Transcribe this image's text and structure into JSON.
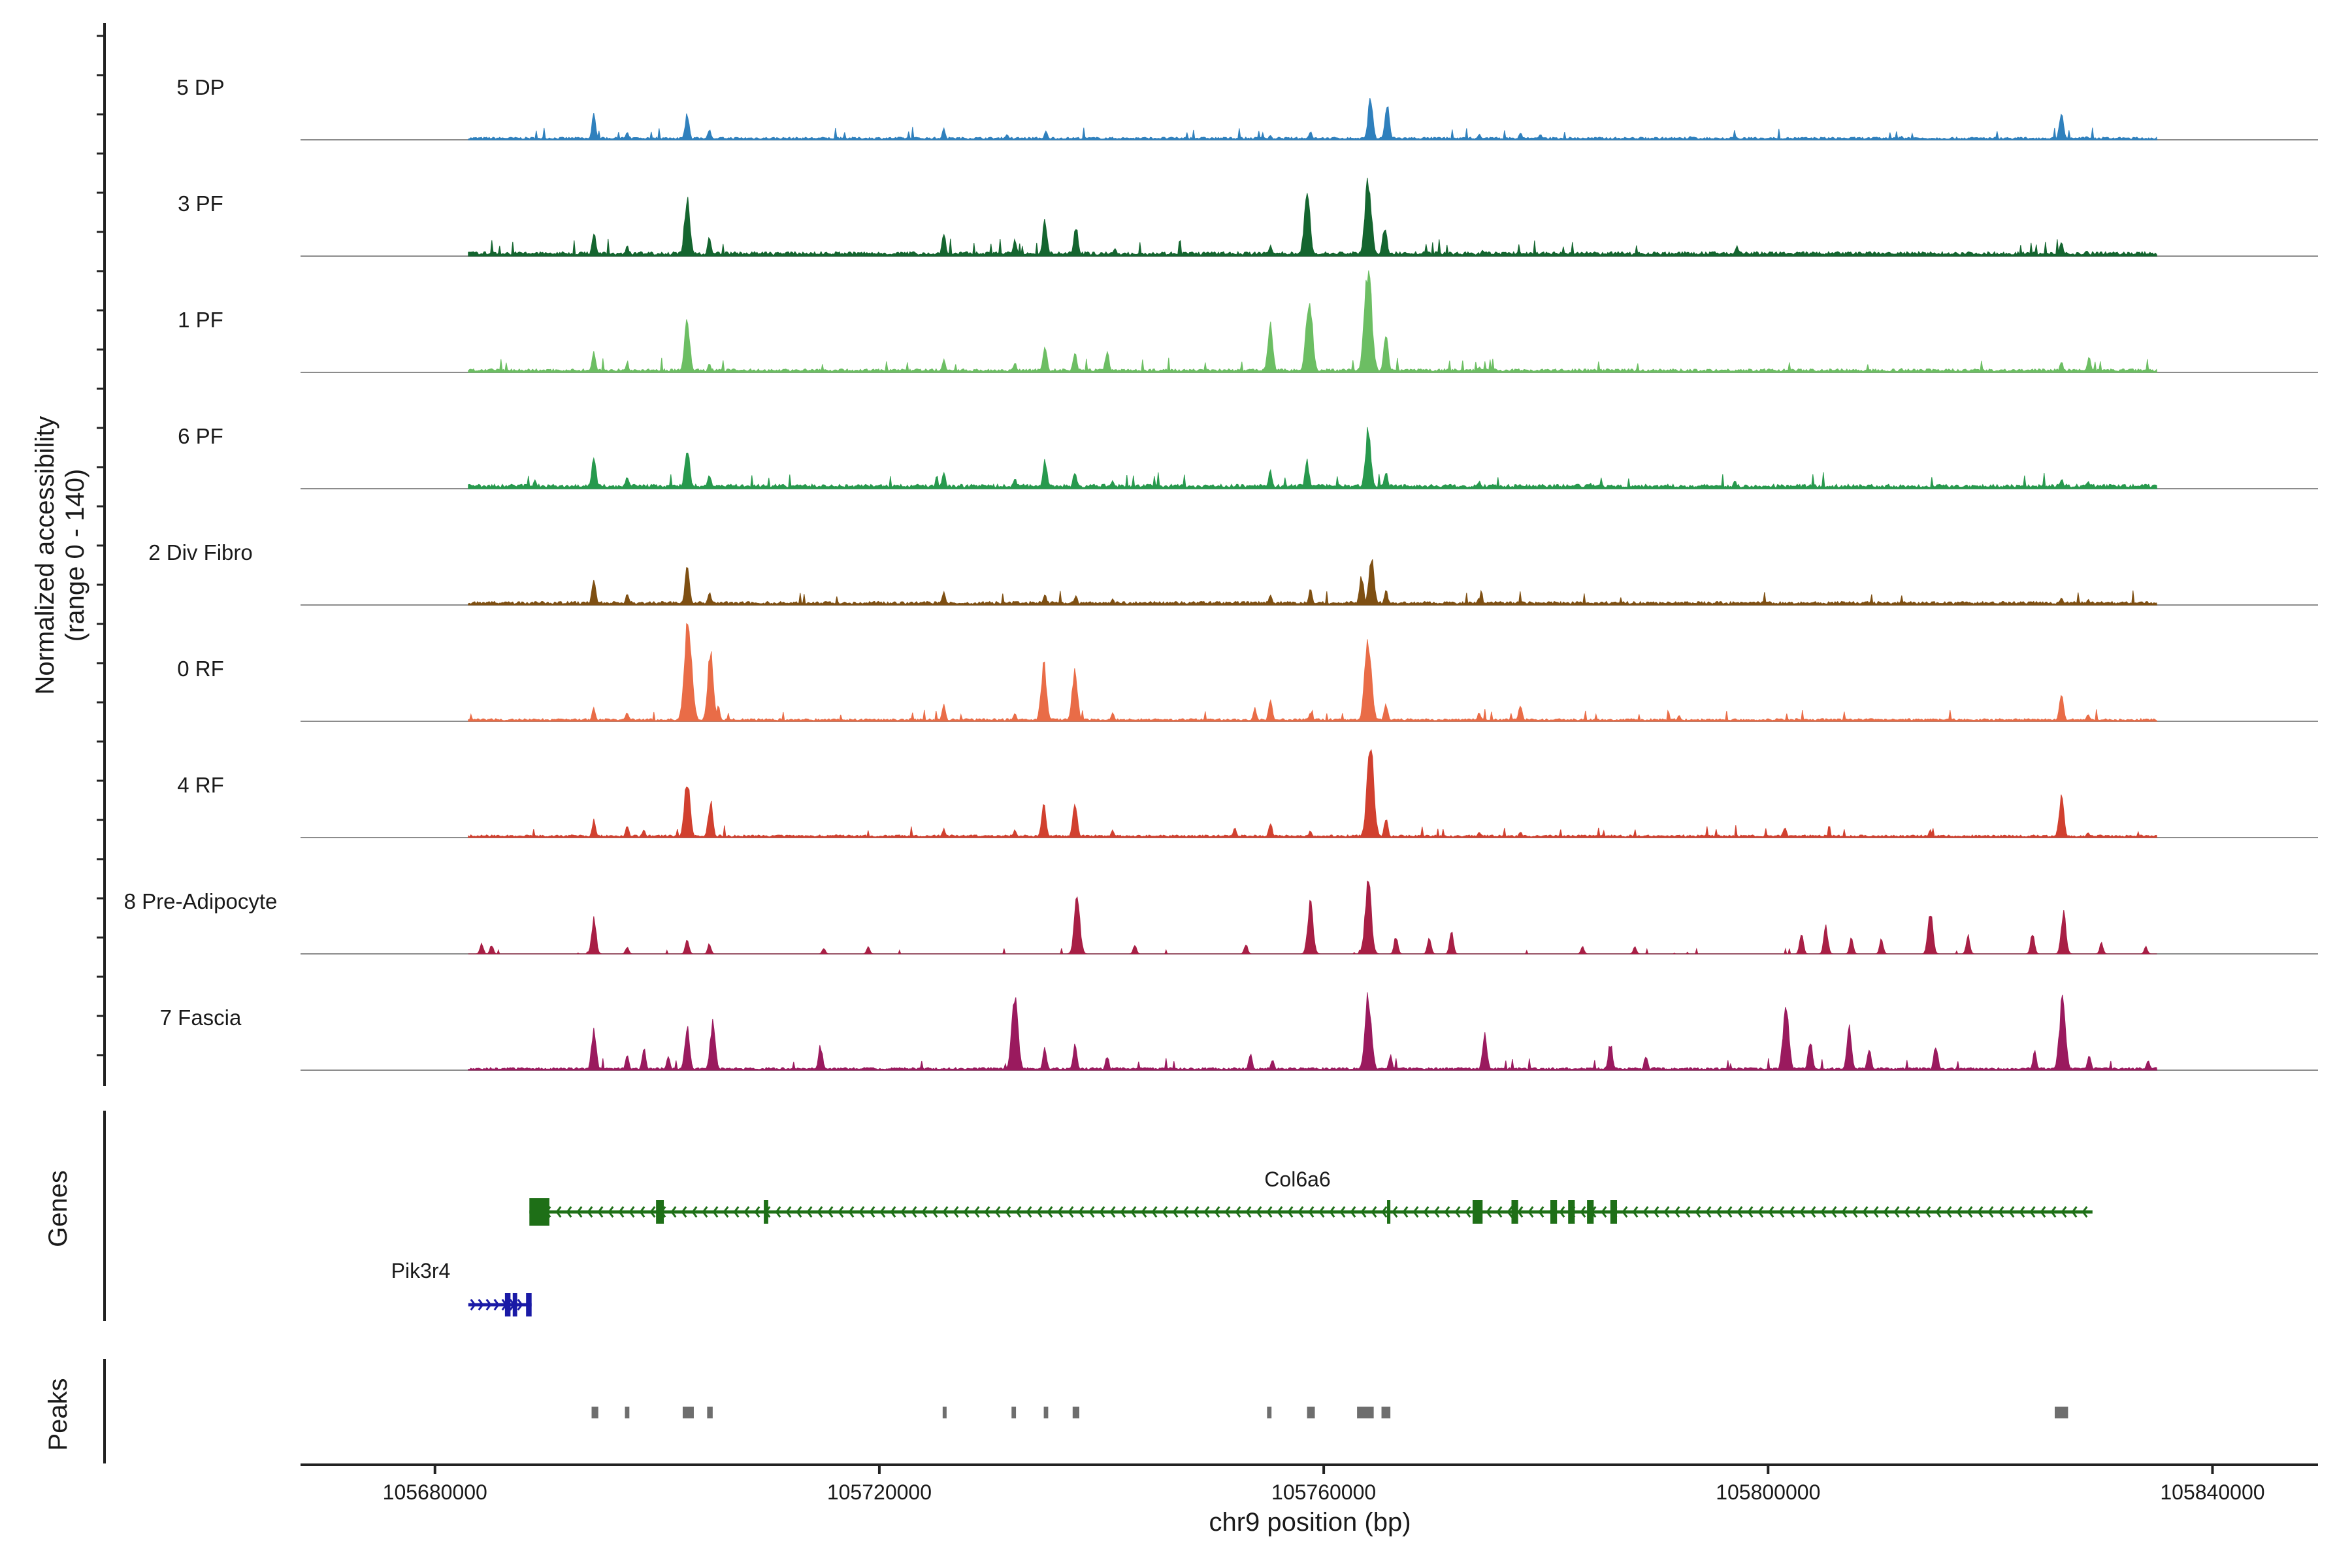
{
  "chart_data": {
    "type": "area",
    "title": "",
    "xlabel": "chr9 position (bp)",
    "ylabel_line1": "Normalized accessibility",
    "ylabel_line2": "(range 0 - 140)",
    "ylim": [
      0,
      140
    ],
    "xlim": [
      105667900,
      105849500
    ],
    "x_ticks": [
      105680000,
      105720000,
      105760000,
      105800000,
      105840000
    ],
    "x_tick_labels": [
      "105680000",
      "105720000",
      "105760000",
      "105800000",
      "105840000"
    ],
    "track_range": [
      105683000,
      105835000
    ],
    "tracks": [
      {
        "name": "5 DP",
        "color": "#2f80bd",
        "baseline": 3,
        "peaks": [
          [
            105694300,
            34
          ],
          [
            105702700,
            36
          ],
          [
            105704700,
            14
          ],
          [
            105697300,
            10
          ],
          [
            105725800,
            15
          ],
          [
            105731500,
            8
          ],
          [
            105735000,
            12
          ],
          [
            105755200,
            6
          ],
          [
            105758800,
            12
          ],
          [
            105764200,
            58
          ],
          [
            105765700,
            48
          ],
          [
            105774000,
            8
          ],
          [
            105777700,
            10
          ],
          [
            105779500,
            8
          ],
          [
            105793000,
            5
          ],
          [
            105797000,
            6
          ],
          [
            105812000,
            5
          ],
          [
            105826400,
            40
          ],
          [
            105828700,
            5
          ]
        ]
      },
      {
        "name": "3 PF",
        "color": "#14652f",
        "baseline": 5,
        "peaks": [
          [
            105694300,
            32
          ],
          [
            105697300,
            14
          ],
          [
            105702700,
            80
          ],
          [
            105704700,
            25
          ],
          [
            105725800,
            30
          ],
          [
            105732200,
            22
          ],
          [
            105734900,
            48
          ],
          [
            105737700,
            40
          ],
          [
            105741200,
            12
          ],
          [
            105755200,
            15
          ],
          [
            105758500,
            90
          ],
          [
            105764000,
            108
          ],
          [
            105765500,
            42
          ],
          [
            105774300,
            8
          ],
          [
            105797200,
            14
          ],
          [
            105826400,
            20
          ],
          [
            105828700,
            8
          ]
        ]
      },
      {
        "name": "1 PF",
        "color": "#6cbe63",
        "baseline": 4,
        "peaks": [
          [
            105694300,
            27
          ],
          [
            105697300,
            12
          ],
          [
            105702700,
            75
          ],
          [
            105704700,
            12
          ],
          [
            105725800,
            18
          ],
          [
            105732200,
            14
          ],
          [
            105734900,
            37
          ],
          [
            105737600,
            28
          ],
          [
            105740500,
            30
          ],
          [
            105755200,
            65
          ],
          [
            105758700,
            108
          ],
          [
            105764000,
            140
          ],
          [
            105765600,
            50
          ],
          [
            105774000,
            8
          ],
          [
            105812000,
            6
          ],
          [
            105826400,
            15
          ],
          [
            105828900,
            20
          ]
        ]
      },
      {
        "name": "6 PF",
        "color": "#27994d",
        "baseline": 5,
        "peaks": [
          [
            105689000,
            12
          ],
          [
            105694300,
            45
          ],
          [
            105697300,
            18
          ],
          [
            105702700,
            60
          ],
          [
            105704700,
            20
          ],
          [
            105725800,
            22
          ],
          [
            105732200,
            15
          ],
          [
            105734900,
            40
          ],
          [
            105737600,
            25
          ],
          [
            105741000,
            12
          ],
          [
            105755200,
            25
          ],
          [
            105758500,
            38
          ],
          [
            105764000,
            82
          ],
          [
            105765600,
            24
          ],
          [
            105774000,
            10
          ],
          [
            105784000,
            8
          ],
          [
            105797000,
            12
          ],
          [
            105826400,
            14
          ],
          [
            105828800,
            10
          ]
        ]
      },
      {
        "name": "2 Div Fibro",
        "color": "#7e4f12",
        "baseline": 4,
        "peaks": [
          [
            105694300,
            35
          ],
          [
            105697300,
            15
          ],
          [
            105702700,
            50
          ],
          [
            105704700,
            18
          ],
          [
            105725800,
            18
          ],
          [
            105734900,
            15
          ],
          [
            105737700,
            12
          ],
          [
            105741000,
            8
          ],
          [
            105755200,
            15
          ],
          [
            105758800,
            22
          ],
          [
            105763400,
            40
          ],
          [
            105764300,
            70
          ],
          [
            105765600,
            20
          ],
          [
            105774000,
            10
          ],
          [
            105812000,
            6
          ],
          [
            105826400,
            10
          ],
          [
            105828800,
            8
          ]
        ]
      },
      {
        "name": "0 RF",
        "color": "#e96c47",
        "baseline": 3,
        "peaks": [
          [
            105694300,
            18
          ],
          [
            105697300,
            12
          ],
          [
            105702800,
            140
          ],
          [
            105704800,
            92
          ],
          [
            105705500,
            20
          ],
          [
            105725800,
            22
          ],
          [
            105732200,
            10
          ],
          [
            105734800,
            78
          ],
          [
            105737600,
            74
          ],
          [
            105741000,
            12
          ],
          [
            105753800,
            18
          ],
          [
            105755200,
            30
          ],
          [
            105758800,
            12
          ],
          [
            105764000,
            118
          ],
          [
            105765600,
            25
          ],
          [
            105774000,
            12
          ],
          [
            105777700,
            22
          ],
          [
            105792000,
            8
          ],
          [
            105826400,
            40
          ],
          [
            105828800,
            10
          ]
        ]
      },
      {
        "name": "4 RF",
        "color": "#d1402f",
        "baseline": 3,
        "peaks": [
          [
            105694300,
            24
          ],
          [
            105697300,
            16
          ],
          [
            105698800,
            10
          ],
          [
            105702700,
            80
          ],
          [
            105704800,
            50
          ],
          [
            105725800,
            12
          ],
          [
            105732200,
            10
          ],
          [
            105734800,
            48
          ],
          [
            105737600,
            50
          ],
          [
            105741000,
            10
          ],
          [
            105752000,
            14
          ],
          [
            105755200,
            20
          ],
          [
            105758800,
            10
          ],
          [
            105764200,
            125
          ],
          [
            105765600,
            28
          ],
          [
            105774000,
            8
          ],
          [
            105777700,
            8
          ],
          [
            105801500,
            15
          ],
          [
            105814600,
            10
          ],
          [
            105826400,
            58
          ],
          [
            105828800,
            8
          ]
        ]
      },
      {
        "name": "8 Pre-Adipocyte",
        "color": "#a81f45",
        "baseline": 0,
        "peaks": [
          [
            105684200,
            14
          ],
          [
            105685100,
            12
          ],
          [
            105694300,
            50
          ],
          [
            105697300,
            10
          ],
          [
            105702700,
            22
          ],
          [
            105704700,
            14
          ],
          [
            105715000,
            8
          ],
          [
            105719000,
            10
          ],
          [
            105737800,
            82
          ],
          [
            105743000,
            12
          ],
          [
            105753000,
            14
          ],
          [
            105758800,
            75
          ],
          [
            105764000,
            100
          ],
          [
            105766500,
            25
          ],
          [
            105769500,
            24
          ],
          [
            105771500,
            30
          ],
          [
            105783300,
            10
          ],
          [
            105788000,
            10
          ],
          [
            105803000,
            28
          ],
          [
            105805200,
            38
          ],
          [
            105807500,
            22
          ],
          [
            105810200,
            20
          ],
          [
            105814600,
            60
          ],
          [
            105818000,
            25
          ],
          [
            105823800,
            30
          ],
          [
            105826600,
            58
          ],
          [
            105830000,
            15
          ],
          [
            105834000,
            10
          ]
        ]
      },
      {
        "name": "7 Fascia",
        "color": "#9a1a5e",
        "baseline": 3,
        "peaks": [
          [
            105694300,
            55
          ],
          [
            105697300,
            20
          ],
          [
            105698800,
            30
          ],
          [
            105701000,
            18
          ],
          [
            105702700,
            58
          ],
          [
            105705000,
            68
          ],
          [
            105714700,
            34
          ],
          [
            105732200,
            105
          ],
          [
            105734900,
            30
          ],
          [
            105737600,
            34
          ],
          [
            105740500,
            20
          ],
          [
            105753400,
            22
          ],
          [
            105755400,
            15
          ],
          [
            105764000,
            108
          ],
          [
            105766000,
            20
          ],
          [
            105774500,
            50
          ],
          [
            105785800,
            38
          ],
          [
            105789000,
            20
          ],
          [
            105801600,
            90
          ],
          [
            105803800,
            42
          ],
          [
            105807300,
            58
          ],
          [
            105809100,
            30
          ],
          [
            105815100,
            35
          ],
          [
            105824000,
            25
          ],
          [
            105826500,
            100
          ],
          [
            105828900,
            22
          ],
          [
            105834200,
            15
          ]
        ]
      }
    ],
    "genes_label": "Genes",
    "genes": [
      {
        "name": "Col6a6",
        "strand": "-",
        "start": 105688500,
        "end": 105829200,
        "color": "#1e6f17",
        "exons": [
          [
            105688500,
            105690300
          ],
          [
            105699900,
            105700600
          ],
          [
            105709600,
            105710000
          ],
          [
            105765700,
            105766000
          ],
          [
            105773400,
            105774300
          ],
          [
            105776900,
            105777500
          ],
          [
            105780400,
            105781000
          ],
          [
            105782000,
            105782600
          ],
          [
            105783700,
            105784300
          ],
          [
            105785800,
            105786400
          ]
        ]
      },
      {
        "name": "Pik3r4",
        "strand": "+",
        "start": 105683000,
        "end": 105688700,
        "color": "#1a1aa6",
        "exons": [
          [
            105686300,
            105686800
          ],
          [
            105687000,
            105687400
          ],
          [
            105688200,
            105688700
          ]
        ]
      }
    ],
    "peaks_label": "Peaks",
    "peak_regions": [
      [
        105694100,
        105694700
      ],
      [
        105697100,
        105697500
      ],
      [
        105702300,
        105703300
      ],
      [
        105704500,
        105705000
      ],
      [
        105725700,
        105726000
      ],
      [
        105731900,
        105732300
      ],
      [
        105734800,
        105735200
      ],
      [
        105737400,
        105738000
      ],
      [
        105754900,
        105755300
      ],
      [
        105758500,
        105759200
      ],
      [
        105763000,
        105764500
      ],
      [
        105765200,
        105766000
      ],
      [
        105825800,
        105827000
      ]
    ]
  }
}
